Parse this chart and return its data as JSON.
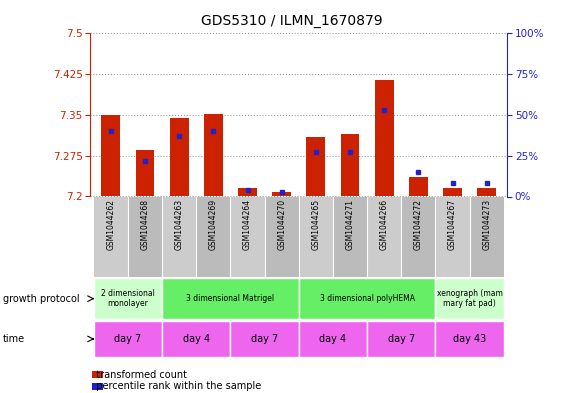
{
  "title": "GDS5310 / ILMN_1670879",
  "samples": [
    "GSM1044262",
    "GSM1044268",
    "GSM1044263",
    "GSM1044269",
    "GSM1044264",
    "GSM1044270",
    "GSM1044265",
    "GSM1044271",
    "GSM1044266",
    "GSM1044272",
    "GSM1044267",
    "GSM1044273"
  ],
  "transformed_count": [
    7.35,
    7.285,
    7.345,
    7.352,
    7.215,
    7.208,
    7.31,
    7.315,
    7.415,
    7.235,
    7.215,
    7.215
  ],
  "percentile_rank": [
    40,
    22,
    37,
    40,
    4,
    3,
    27,
    27,
    53,
    15,
    8,
    8
  ],
  "ymin": 7.2,
  "ymax": 7.5,
  "yticks_left": [
    7.2,
    7.275,
    7.35,
    7.425,
    7.5
  ],
  "yticks_right": [
    0,
    25,
    50,
    75,
    100
  ],
  "bar_color": "#cc2200",
  "dot_color": "#2222cc",
  "plot_bg": "#ffffff",
  "sample_bg": "#cccccc",
  "left_axis_color": "#cc2200",
  "right_axis_color": "#2222cc",
  "bar_width": 0.55,
  "groups": [
    {
      "label": "2 dimensional\nmonolayer",
      "start": 0,
      "end": 2,
      "color": "#ccffcc"
    },
    {
      "label": "3 dimensional Matrigel",
      "start": 2,
      "end": 6,
      "color": "#66ee66"
    },
    {
      "label": "3 dimensional polyHEMA",
      "start": 6,
      "end": 10,
      "color": "#66ee66"
    },
    {
      "label": "xenograph (mam\nmary fat pad)",
      "start": 10,
      "end": 12,
      "color": "#ccffcc"
    }
  ],
  "time_groups": [
    {
      "label": "day 7",
      "start": 0,
      "end": 2
    },
    {
      "label": "day 4",
      "start": 2,
      "end": 4
    },
    {
      "label": "day 7",
      "start": 4,
      "end": 6
    },
    {
      "label": "day 4",
      "start": 6,
      "end": 8
    },
    {
      "label": "day 7",
      "start": 8,
      "end": 10
    },
    {
      "label": "day 43",
      "start": 10,
      "end": 12
    }
  ],
  "time_color": "#ee66ee"
}
